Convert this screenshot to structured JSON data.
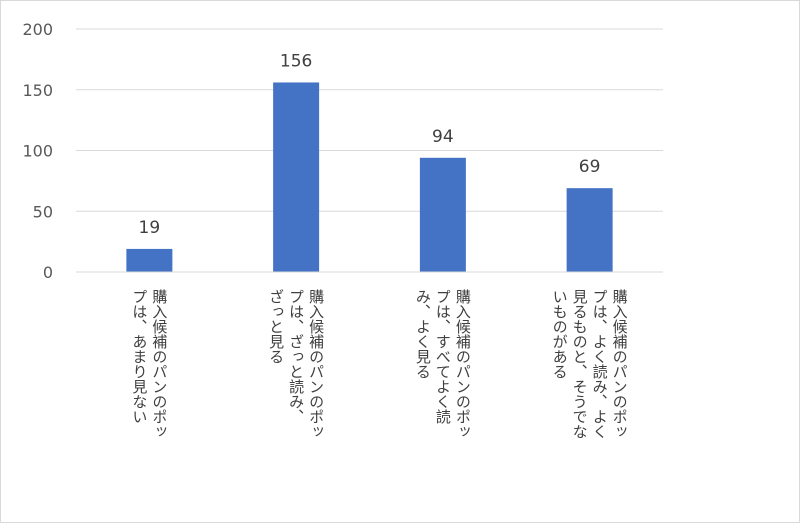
{
  "chart_data": {
    "type": "bar",
    "categories": [
      [
        "購入候補のパンのポッ",
        "プは、あまり見ない"
      ],
      [
        "購入候補のパンのポッ",
        "プは、ざっと読み、",
        "ざっと見る"
      ],
      [
        "購入候補のパンのポッ",
        "プは、すべてよく読",
        "み、よく見る"
      ],
      [
        "購入候補のパンのポッ",
        "プは、よく読み、よく",
        "見るものと、そうでな",
        "いものがある"
      ]
    ],
    "values": [
      19,
      156,
      94,
      69
    ],
    "data_labels": [
      "19",
      "156",
      "94",
      "69"
    ],
    "y_ticks": [
      "0",
      "50",
      "100",
      "150",
      "200"
    ],
    "ylim": [
      0,
      200
    ],
    "grid": true,
    "bar_color": "#4472C4",
    "title": "",
    "xlabel": "",
    "ylabel": ""
  }
}
